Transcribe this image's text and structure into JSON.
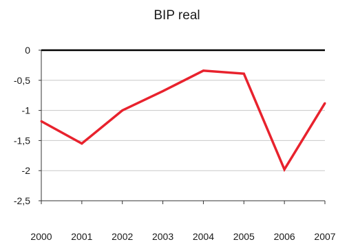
{
  "chart_data": {
    "type": "line",
    "title": "BIP real",
    "xlabel": "",
    "ylabel": "",
    "categories": [
      "2000",
      "2001",
      "2002",
      "2003",
      "2004",
      "2005",
      "2006",
      "2007"
    ],
    "y_ticks": [
      "0",
      "-0,5",
      "-1",
      "-1,5",
      "-2",
      "-2,5"
    ],
    "y_tick_values": [
      0,
      -0.5,
      -1,
      -1.5,
      -2,
      -2.5
    ],
    "ylim": [
      -2.5,
      0
    ],
    "grid": true,
    "series": [
      {
        "color": "#e8222d",
        "values": [
          -1.18,
          -1.55,
          -1.0,
          -0.68,
          -0.34,
          -0.39,
          -1.98,
          -0.88
        ]
      }
    ]
  }
}
